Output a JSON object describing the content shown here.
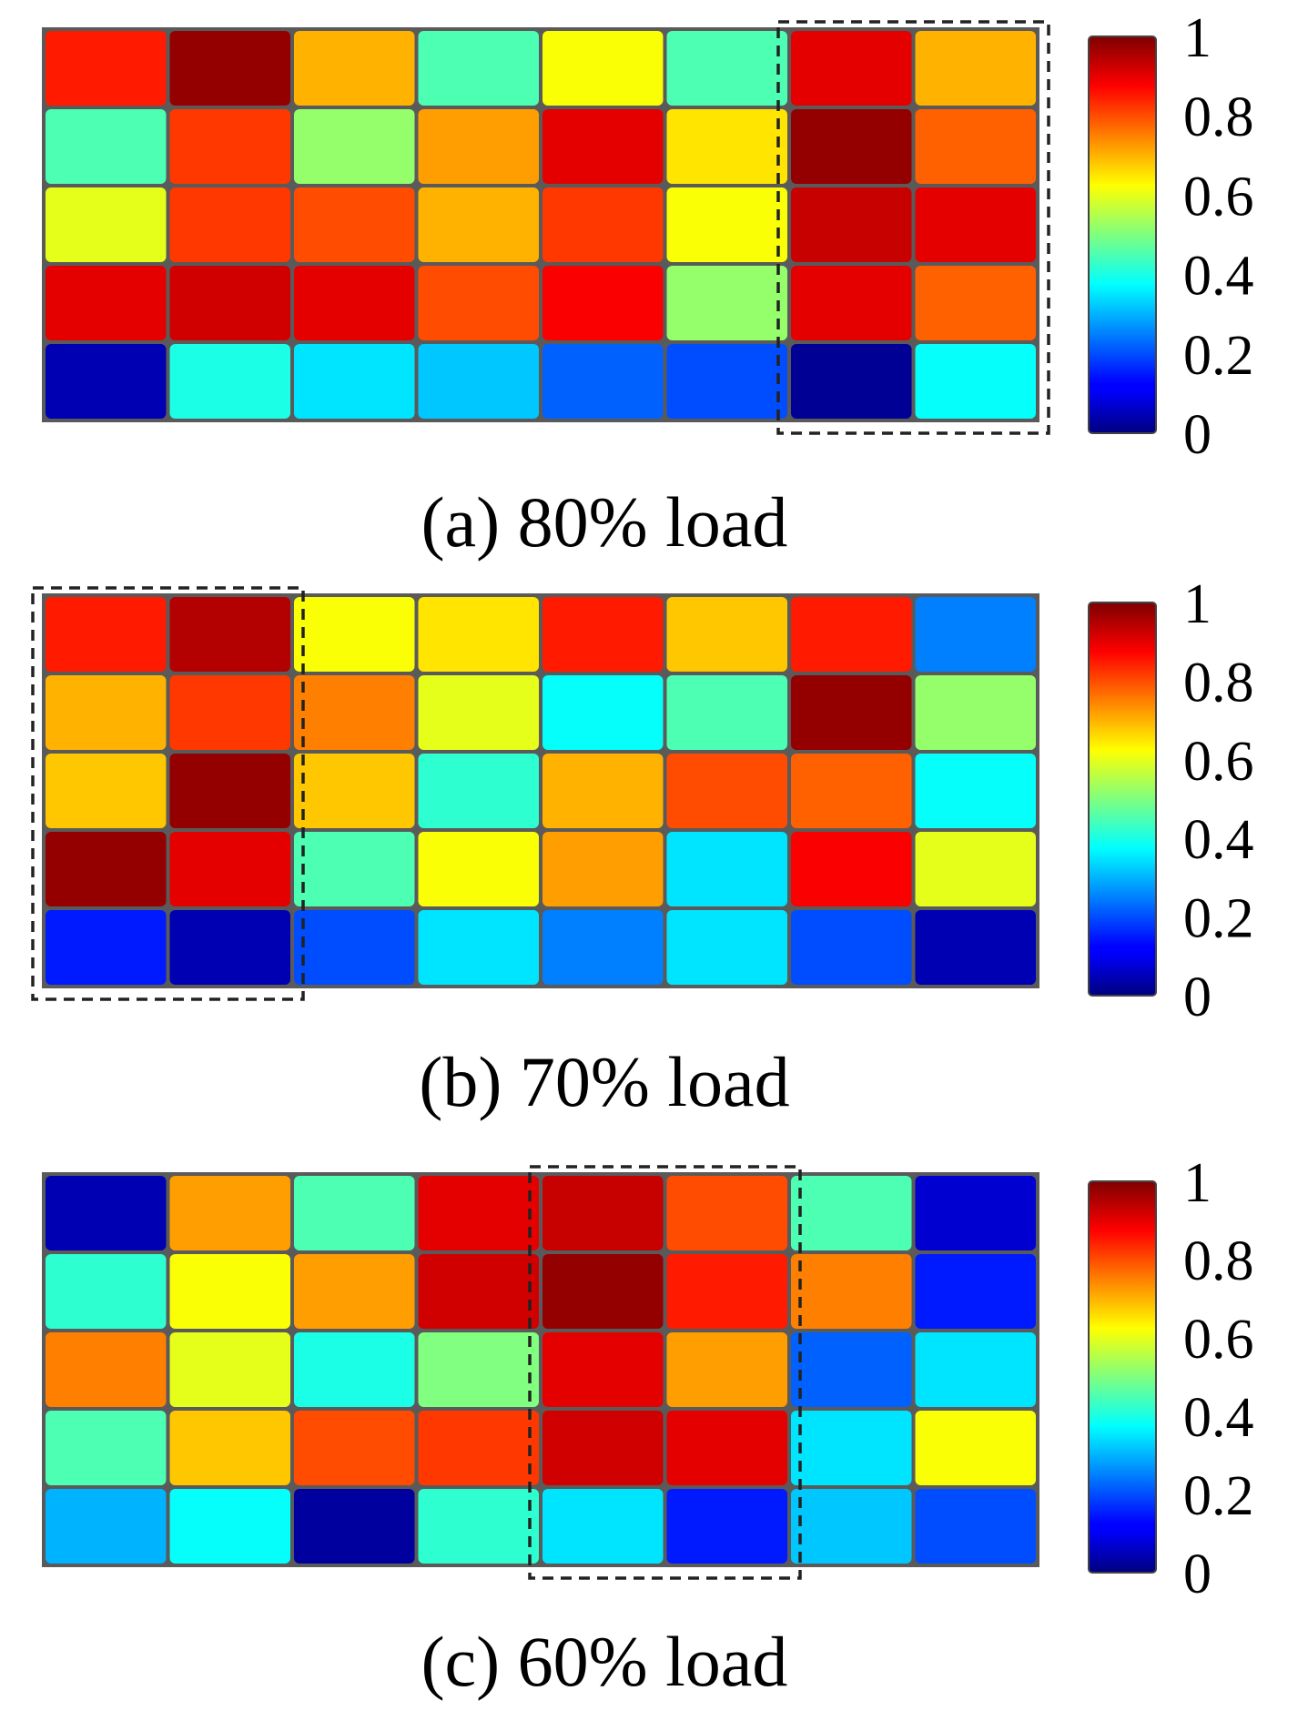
{
  "chart_data": [
    {
      "type": "heatmap",
      "caption": "(a) 80% load",
      "rows": 5,
      "cols": 8,
      "values": [
        [
          0.85,
          0.98,
          0.7,
          0.45,
          0.62,
          0.45,
          0.9,
          0.7
        ],
        [
          0.45,
          0.82,
          0.52,
          0.72,
          0.9,
          0.65,
          0.98,
          0.78
        ],
        [
          0.6,
          0.82,
          0.8,
          0.7,
          0.82,
          0.62,
          0.93,
          0.9
        ],
        [
          0.9,
          0.92,
          0.9,
          0.8,
          0.88,
          0.52,
          0.9,
          0.78
        ],
        [
          0.05,
          0.4,
          0.35,
          0.32,
          0.22,
          0.2,
          0.02,
          0.38
        ]
      ],
      "highlight": {
        "row_start": 0,
        "row_end": 4,
        "col_start": 6,
        "col_end": 7
      },
      "colorbar": {
        "min": 0,
        "max": 1,
        "ticks": [
          "0",
          "0.2",
          "0.4",
          "0.6",
          "0.8",
          "1"
        ]
      }
    },
    {
      "type": "heatmap",
      "caption": "(b) 70% load",
      "rows": 5,
      "cols": 8,
      "values": [
        [
          0.85,
          0.95,
          0.62,
          0.65,
          0.85,
          0.68,
          0.85,
          0.25
        ],
        [
          0.7,
          0.82,
          0.75,
          0.6,
          0.38,
          0.45,
          0.98,
          0.52
        ],
        [
          0.68,
          0.98,
          0.68,
          0.42,
          0.7,
          0.8,
          0.78,
          0.38
        ],
        [
          0.98,
          0.9,
          0.45,
          0.62,
          0.72,
          0.35,
          0.88,
          0.6
        ],
        [
          0.15,
          0.05,
          0.2,
          0.35,
          0.25,
          0.35,
          0.2,
          0.05
        ]
      ],
      "highlight": {
        "row_start": 0,
        "row_end": 4,
        "col_start": 0,
        "col_end": 1
      },
      "colorbar": {
        "min": 0,
        "max": 1,
        "ticks": [
          "0",
          "0.2",
          "0.4",
          "0.6",
          "0.8",
          "1"
        ]
      }
    },
    {
      "type": "heatmap",
      "caption": "(c) 60% load",
      "rows": 5,
      "cols": 8,
      "values": [
        [
          0.05,
          0.72,
          0.45,
          0.9,
          0.93,
          0.8,
          0.45,
          0.08
        ],
        [
          0.42,
          0.62,
          0.72,
          0.92,
          0.98,
          0.85,
          0.75,
          0.15
        ],
        [
          0.75,
          0.6,
          0.4,
          0.5,
          0.9,
          0.72,
          0.22,
          0.35
        ],
        [
          0.45,
          0.68,
          0.8,
          0.82,
          0.92,
          0.9,
          0.35,
          0.62
        ],
        [
          0.3,
          0.38,
          0.03,
          0.42,
          0.35,
          0.15,
          0.32,
          0.2
        ]
      ],
      "highlight": {
        "row_start": 0,
        "row_end": 4,
        "col_start": 4,
        "col_end": 5
      },
      "colorbar": {
        "min": 0,
        "max": 1,
        "ticks": [
          "0",
          "0.2",
          "0.4",
          "0.6",
          "0.8",
          "1"
        ]
      }
    }
  ]
}
